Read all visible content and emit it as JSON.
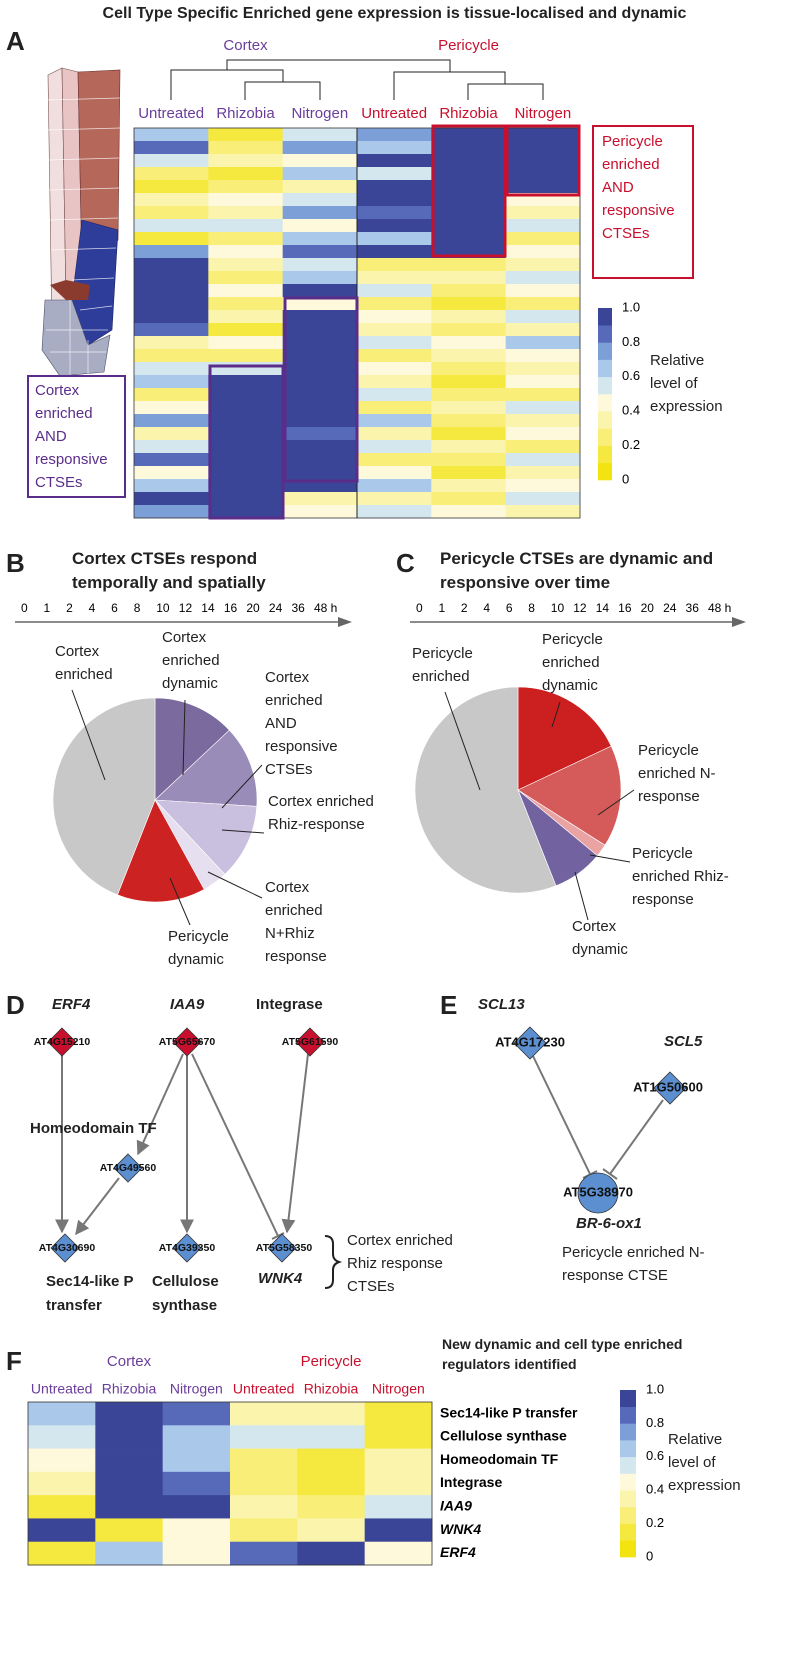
{
  "title": "Cell Type Specific Enriched gene expression is tissue-localised and dynamic",
  "chart_data": [
    {
      "type": "heatmap",
      "letter": "A",
      "groups": [
        {
          "name": "Cortex",
          "color": "#6a3d9a",
          "columns": [
            "Untreated",
            "Rhizobia",
            "Nitrogen"
          ]
        },
        {
          "name": "Pericycle",
          "color": "#c8102e",
          "columns": [
            "Untreated",
            "Rhizobia",
            "Nitrogen"
          ]
        }
      ],
      "values": [
        [
          0.6,
          0.1,
          0.5,
          0.7,
          0.9,
          0.9
        ],
        [
          0.8,
          0.2,
          0.7,
          0.6,
          1.0,
          1.0
        ],
        [
          0.5,
          0.3,
          0.4,
          0.9,
          1.0,
          1.0
        ],
        [
          0.2,
          0.1,
          0.6,
          0.5,
          0.9,
          1.0
        ],
        [
          0.1,
          0.2,
          0.3,
          0.9,
          1.0,
          0.9
        ],
        [
          0.3,
          0.4,
          0.5,
          1.0,
          1.0,
          0.4
        ],
        [
          0.2,
          0.3,
          0.7,
          0.8,
          0.9,
          0.3
        ],
        [
          0.5,
          0.5,
          0.4,
          0.9,
          1.0,
          0.5
        ],
        [
          0.1,
          0.2,
          0.6,
          0.6,
          0.9,
          0.2
        ],
        [
          0.7,
          0.4,
          0.8,
          0.9,
          1.0,
          0.4
        ],
        [
          1.0,
          0.3,
          0.5,
          0.2,
          0.2,
          0.3
        ],
        [
          0.9,
          0.2,
          0.6,
          0.3,
          0.3,
          0.5
        ],
        [
          1.0,
          0.4,
          0.9,
          0.5,
          0.2,
          0.4
        ],
        [
          0.9,
          0.2,
          0.4,
          0.2,
          0.1,
          0.2
        ],
        [
          1.0,
          0.3,
          1.0,
          0.4,
          0.3,
          0.5
        ],
        [
          0.8,
          0.1,
          0.9,
          0.3,
          0.2,
          0.3
        ],
        [
          0.3,
          0.4,
          1.0,
          0.5,
          0.4,
          0.6
        ],
        [
          0.2,
          0.2,
          0.9,
          0.2,
          0.3,
          0.4
        ],
        [
          0.5,
          0.5,
          1.0,
          0.4,
          0.2,
          0.3
        ],
        [
          0.6,
          1.0,
          0.9,
          0.3,
          0.1,
          0.4
        ],
        [
          0.2,
          0.9,
          1.0,
          0.5,
          0.2,
          0.2
        ],
        [
          0.4,
          1.0,
          0.9,
          0.2,
          0.3,
          0.5
        ],
        [
          0.7,
          0.9,
          1.0,
          0.6,
          0.2,
          0.3
        ],
        [
          0.3,
          1.0,
          0.8,
          0.3,
          0.1,
          0.4
        ],
        [
          0.5,
          1.0,
          1.0,
          0.5,
          0.3,
          0.2
        ],
        [
          0.8,
          0.9,
          0.9,
          0.2,
          0.2,
          0.5
        ],
        [
          0.4,
          1.0,
          1.0,
          0.4,
          0.1,
          0.3
        ],
        [
          0.6,
          0.9,
          0.9,
          0.6,
          0.3,
          0.4
        ],
        [
          0.9,
          0.9,
          0.3,
          0.3,
          0.2,
          0.5
        ],
        [
          0.7,
          1.0,
          0.4,
          0.5,
          0.4,
          0.3
        ]
      ],
      "annotations": [
        "Pericycle enriched AND responsive CTSEs",
        "Cortex enriched AND responsive CTSEs"
      ],
      "colorscale": [
        "#f3e310",
        "#f5e83e",
        "#f8ee78",
        "#fbf4ad",
        "#fdf9da",
        "#d4e7ef",
        "#a9c8ea",
        "#7d9fd8",
        "#566ab9",
        "#3b4597"
      ],
      "colorbar_lim": [
        0,
        1
      ],
      "colorbar_ticks": [
        {
          "value": 1,
          "label": "1.0"
        },
        0.8,
        0.6,
        0.4,
        0.2,
        0
      ],
      "colorbar_label": "Relative level of expression"
    },
    {
      "type": "pie",
      "letter": "B",
      "title": "Cortex CTSEs respond temporally and spatially",
      "timeline": [
        0,
        1,
        2,
        4,
        6,
        8,
        10,
        12,
        14,
        16,
        20,
        24,
        36,
        {
          "value": 48,
          "label": "48 h"
        }
      ],
      "categories": [
        "Cortex enriched dynamic",
        "Cortex enriched AND responsive CTSEs",
        "Cortex enriched Rhiz-response",
        "Cortex enriched N+Rhiz response",
        "Pericycle dynamic",
        "Cortex enriched"
      ],
      "values": [
        13,
        13,
        12,
        4,
        14,
        44
      ],
      "colors": [
        "#7b6a9d",
        "#9a8cb9",
        "#c9bfdf",
        "#e5dff0",
        "#cc2222",
        "#c8c8c8"
      ]
    },
    {
      "type": "pie",
      "letter": "C",
      "title": "Pericycle CTSEs are dynamic and responsive over time",
      "timeline": [
        0,
        1,
        2,
        4,
        6,
        8,
        10,
        12,
        14,
        16,
        20,
        24,
        36,
        {
          "value": 48,
          "label": "48 h"
        }
      ],
      "categories": [
        "Pericycle enriched dynamic",
        "Pericycle enriched N-response",
        "Pericycle enriched Rhiz-response",
        "Cortex dynamic",
        "Pericycle enriched"
      ],
      "values": [
        18,
        16,
        2,
        8,
        56
      ],
      "colors": [
        "#cc1f1f",
        "#d55a5a",
        "#e9a3a3",
        "#7262a0",
        "#c8c8c8"
      ]
    },
    {
      "type": "heatmap",
      "letter": "F",
      "title": "New dynamic and cell type enriched regulators identified",
      "groups": [
        {
          "name": "Cortex",
          "color": "#6a3d9a",
          "columns": [
            "Untreated",
            "Rhizobia",
            "Nitrogen"
          ]
        },
        {
          "name": "Pericycle",
          "color": "#c8102e",
          "columns": [
            "Untreated",
            "Rhizobia",
            "Nitrogen"
          ]
        }
      ],
      "rows": [
        "Sec14-like P transfer",
        "Cellulose synthase",
        "Homeodomain TF",
        "Integrase",
        "IAA9",
        "WNK4",
        "ERF4"
      ],
      "values": [
        [
          0.6,
          1.0,
          0.8,
          0.3,
          0.3,
          0.1
        ],
        [
          0.5,
          1.0,
          0.6,
          0.5,
          0.5,
          0.1
        ],
        [
          0.4,
          1.0,
          0.6,
          0.2,
          0.1,
          0.3
        ],
        [
          0.3,
          1.0,
          0.8,
          0.2,
          0.1,
          0.3
        ],
        [
          0.1,
          1.0,
          0.9,
          0.3,
          0.2,
          0.5
        ],
        [
          1.0,
          0.1,
          0.4,
          0.2,
          0.3,
          0.9
        ],
        [
          0.1,
          0.6,
          0.4,
          0.8,
          0.9,
          0.4
        ]
      ],
      "colorscale": [
        "#f3e310",
        "#f5e83e",
        "#f8ee78",
        "#fbf4ad",
        "#fdf9da",
        "#d4e7ef",
        "#a9c8ea",
        "#7d9fd8",
        "#566ab9",
        "#3b4597"
      ],
      "colorbar_lim": [
        0,
        1
      ],
      "colorbar_ticks": [
        {
          "value": 1,
          "label": "1.0"
        },
        0.8,
        0.6,
        0.4,
        0.2,
        0
      ],
      "colorbar_label": "Relative level of expression"
    }
  ],
  "panel_d": {
    "letter": "D",
    "nodes": [
      {
        "id": "AT4G15210",
        "label": "ERF4"
      },
      {
        "id": "AT5G65670",
        "label": "IAA9"
      },
      {
        "id": "AT5G61590",
        "label": "Integrase"
      },
      {
        "id": "AT4G49560",
        "label": "Homeodomain TF"
      },
      {
        "id": "AT4G30690",
        "label": "Sec14-like P transfer"
      },
      {
        "id": "AT4G39350",
        "label": "Cellulose synthase"
      },
      {
        "id": "AT5G58350",
        "label": "WNK4"
      }
    ],
    "note": "Cortex enriched Rhiz response CTSEs"
  },
  "panel_e": {
    "letter": "E",
    "nodes": [
      {
        "id": "AT4G17230",
        "label": "SCL13"
      },
      {
        "id": "AT1G50600",
        "label": "SCL5"
      },
      {
        "id": "AT5G38970",
        "label": "BR-6-ox1"
      }
    ],
    "note": "Pericycle enriched N-response CTSE"
  }
}
